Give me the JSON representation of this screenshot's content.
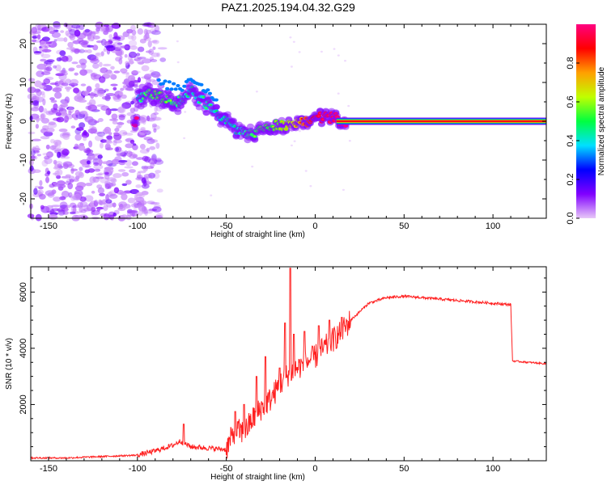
{
  "title": "PAZ1.2025.194.04.32.G29",
  "chart_data": [
    {
      "type": "heatmap",
      "xlabel": "Height of straight line (km)",
      "ylabel": "Frequency (Hz)",
      "xlim": [
        -160,
        130
      ],
      "ylim": [
        -25,
        25
      ],
      "xticks": [
        -150,
        -100,
        -50,
        0,
        50,
        100
      ],
      "yticks": [
        -20,
        -10,
        0,
        10,
        20
      ],
      "colorbar": {
        "label": "Normalized spectral amplitude",
        "range": [
          0,
          1
        ],
        "ticks": [
          0.0,
          0.2,
          0.4,
          0.6,
          0.8
        ],
        "colormap": [
          "#e8c8f8",
          "#8000ff",
          "#0000ff",
          "#00e0ff",
          "#00ff40",
          "#c0ff00",
          "#ffa000",
          "#ff0000",
          "#ff0080"
        ]
      },
      "signal_trace": [
        {
          "x": -100,
          "y": 6,
          "amp": 0.35
        },
        {
          "x": -95,
          "y": 7,
          "amp": 0.45
        },
        {
          "x": -85,
          "y": 6,
          "amp": 0.5
        },
        {
          "x": -75,
          "y": 5,
          "amp": 0.4
        },
        {
          "x": -70,
          "y": 8,
          "amp": 0.35
        },
        {
          "x": -60,
          "y": 4,
          "amp": 0.4
        },
        {
          "x": -55,
          "y": 2,
          "amp": 0.35
        },
        {
          "x": -50,
          "y": 0,
          "amp": 0.35
        },
        {
          "x": -45,
          "y": -2,
          "amp": 0.35
        },
        {
          "x": -40,
          "y": -3,
          "amp": 0.4
        },
        {
          "x": -35,
          "y": -3,
          "amp": 0.45
        },
        {
          "x": -30,
          "y": -2,
          "amp": 0.5
        },
        {
          "x": -25,
          "y": -1,
          "amp": 0.5
        },
        {
          "x": -20,
          "y": -1,
          "amp": 0.55
        },
        {
          "x": -15,
          "y": -1,
          "amp": 0.6
        },
        {
          "x": -10,
          "y": 0,
          "amp": 0.65
        },
        {
          "x": -5,
          "y": 0,
          "amp": 0.8
        },
        {
          "x": 0,
          "y": 1,
          "amp": 0.9
        },
        {
          "x": 5,
          "y": 1,
          "amp": 0.95
        },
        {
          "x": 10,
          "y": 1,
          "amp": 0.95
        },
        {
          "x": 15,
          "y": 0,
          "amp": 1.0
        },
        {
          "x": 130,
          "y": 0,
          "amp": 1.0
        }
      ]
    },
    {
      "type": "line",
      "xlabel": "Height of straight line (km)",
      "ylabel": "SNR (10 * v/v)",
      "xlim": [
        -160,
        130
      ],
      "ylim": [
        0,
        6900
      ],
      "xticks": [
        -150,
        -100,
        -50,
        0,
        50,
        100
      ],
      "yticks": [
        2000,
        4000,
        6000
      ],
      "color": "#ff2020",
      "x": [
        -160,
        -140,
        -120,
        -100,
        -90,
        -80,
        -76,
        -70,
        -60,
        -50,
        -45,
        -40,
        -35,
        -30,
        -25,
        -20,
        -15,
        -10,
        -5,
        0,
        5,
        10,
        15,
        20,
        25,
        30,
        35,
        40,
        50,
        60,
        70,
        80,
        90,
        100,
        110,
        111,
        120,
        130
      ],
      "y": [
        100,
        100,
        150,
        200,
        350,
        550,
        700,
        500,
        450,
        400,
        1100,
        1000,
        1500,
        1900,
        2200,
        2700,
        3100,
        3300,
        3500,
        3700,
        4000,
        4300,
        4600,
        5000,
        5300,
        5600,
        5700,
        5800,
        5850,
        5800,
        5750,
        5700,
        5650,
        5600,
        5550,
        3550,
        3500,
        3450
      ],
      "spikes": [
        {
          "x": -74,
          "y": 1300
        },
        {
          "x": -45,
          "y": 1750
        },
        {
          "x": -40,
          "y": 2000
        },
        {
          "x": -33,
          "y": 3000
        },
        {
          "x": -28,
          "y": 3700
        },
        {
          "x": -20,
          "y": 3300
        },
        {
          "x": -17,
          "y": 4900
        },
        {
          "x": -14,
          "y": 6850
        },
        {
          "x": -12,
          "y": 4500
        },
        {
          "x": -6,
          "y": 4600
        },
        {
          "x": 2,
          "y": 4800
        },
        {
          "x": 8,
          "y": 5000
        },
        {
          "x": 15,
          "y": 5100
        }
      ]
    }
  ]
}
